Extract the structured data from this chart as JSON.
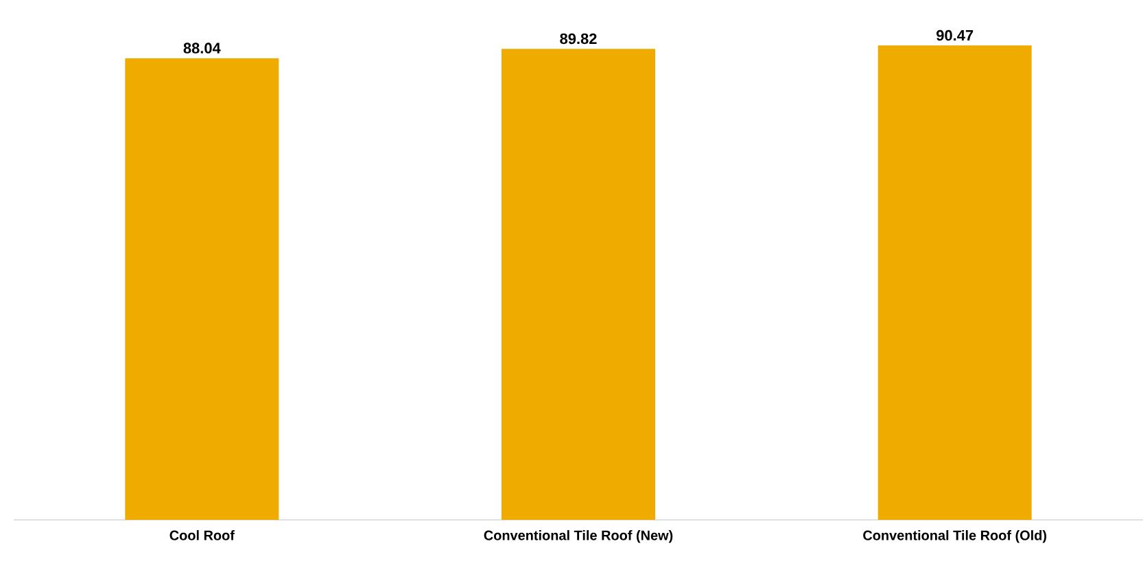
{
  "chart_data": {
    "type": "bar",
    "categories": [
      "Cool Roof",
      "Conventional Tile Roof (New)",
      "Conventional Tile Roof (Old)"
    ],
    "values": [
      88.04,
      89.82,
      90.47
    ],
    "color": "#f0ab00",
    "data_labels": true
  }
}
